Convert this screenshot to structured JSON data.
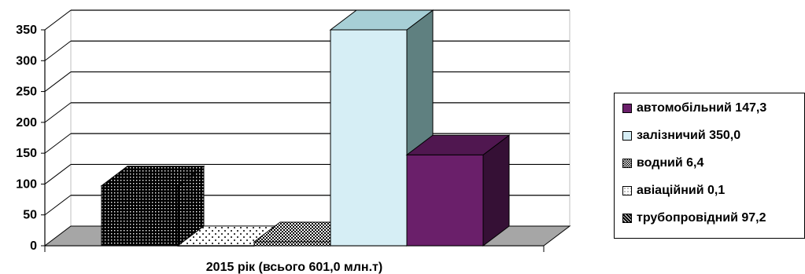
{
  "chart_data": {
    "type": "bar",
    "categories": [
      "2015 рік (всього 601,0 млн.т)"
    ],
    "series": [
      {
        "name": "трубопровідний 97,2",
        "values": [
          97.2
        ],
        "color": "#000000",
        "pattern": "dots-dense"
      },
      {
        "name": "авіаційний 0,1",
        "values": [
          0.1
        ],
        "color": "#ffffff",
        "pattern": "dots-sparse"
      },
      {
        "name": "водний 6,4",
        "values": [
          6.4
        ],
        "color": "#000000",
        "pattern": "checker"
      },
      {
        "name": "залізничий 350,0",
        "values": [
          350.0
        ],
        "color": "#d6eef5",
        "pattern": "solid"
      },
      {
        "name": "автомобільний 147,3",
        "values": [
          147.3
        ],
        "color": "#6a1f6a",
        "pattern": "solid"
      }
    ],
    "yticks": [
      "0",
      "50",
      "100",
      "150",
      "200",
      "250",
      "300",
      "350"
    ],
    "ylim": [
      0,
      350
    ],
    "grid": true,
    "legend": "right",
    "title": "",
    "xlabel": "",
    "ylabel": ""
  }
}
